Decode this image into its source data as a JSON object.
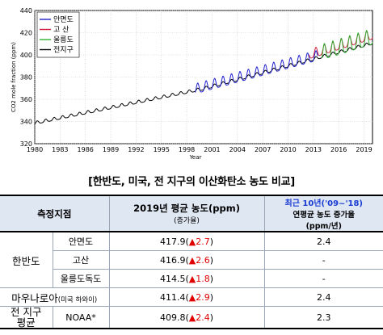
{
  "chart_data": {
    "type": "line",
    "ylabel": "CO2 mole fraction (ppm)",
    "xlabel": "Year",
    "xlim": [
      1980,
      2020
    ],
    "ylim": [
      320,
      440
    ],
    "x_ticks": [
      "1980",
      "1983",
      "1986",
      "1989",
      "1992",
      "1995",
      "1998",
      "2001",
      "2004",
      "2007",
      "2010",
      "2013",
      "2016",
      "2019"
    ],
    "y_ticks": [
      320,
      340,
      360,
      380,
      400,
      420,
      440
    ],
    "grid": true,
    "legend_position": "top-left",
    "series": [
      {
        "name": "안면도",
        "color": "#2020d0",
        "start": 1999.0,
        "end": 2013.5,
        "base_2000": 370.5,
        "slope": 2.08,
        "amplitude": 4.5
      },
      {
        "name": "고  산",
        "color": "#d02040",
        "start": 2012.5,
        "end": 2020.0,
        "base_2000": 370.0,
        "slope": 2.38,
        "amplitude": 4.2
      },
      {
        "name": "울릉도",
        "color": "#30b030",
        "start": 2014.0,
        "end": 2020.0,
        "base_2000": 368.0,
        "slope": 2.35,
        "amplitude": 7.0
      },
      {
        "name": "전지구",
        "color": "#000000",
        "start": 1980.0,
        "end": 2020.0,
        "base_1980": 338.5,
        "slope_1980_2000": 1.55,
        "slope_2000_2020": 2.05,
        "amplitude": 1.3
      }
    ]
  },
  "table": {
    "caption": "[한반도, 미국, 전 지구의 이산화탄소 농도 비교]",
    "header": {
      "site": "측정지점",
      "mean_2019": "2019년 평균 농도(ppm)",
      "increase": "(증가율)",
      "recent_line1": "최근 10년('09~'18)",
      "recent_line2": "연평균 농도 증가율",
      "recent_line3": "(ppm/년)"
    },
    "groups": {
      "korea": "한반도",
      "mauna_loa": "마우나로아",
      "mauna_loa_sub": "(미국 하와이)",
      "global_line1": "전 지구",
      "global_line2": "평균"
    },
    "rows": [
      {
        "site": "안면도",
        "value": "417.9",
        "arrow": "▲",
        "change": "2.7",
        "rate": "2.4"
      },
      {
        "site": "고산",
        "value": "416.9",
        "arrow": "▲",
        "change": "2.6",
        "rate": "-"
      },
      {
        "site": "울릉도독도",
        "value": "414.5",
        "arrow": "▲",
        "change": "1.8",
        "rate": "-"
      },
      {
        "site": "",
        "value": "411.4",
        "arrow": "▲",
        "change": "2.9",
        "rate": "2.4"
      },
      {
        "site": "NOAA*",
        "value": "409.8",
        "arrow": "▲",
        "change": "2.4",
        "rate": "2.3"
      }
    ]
  }
}
